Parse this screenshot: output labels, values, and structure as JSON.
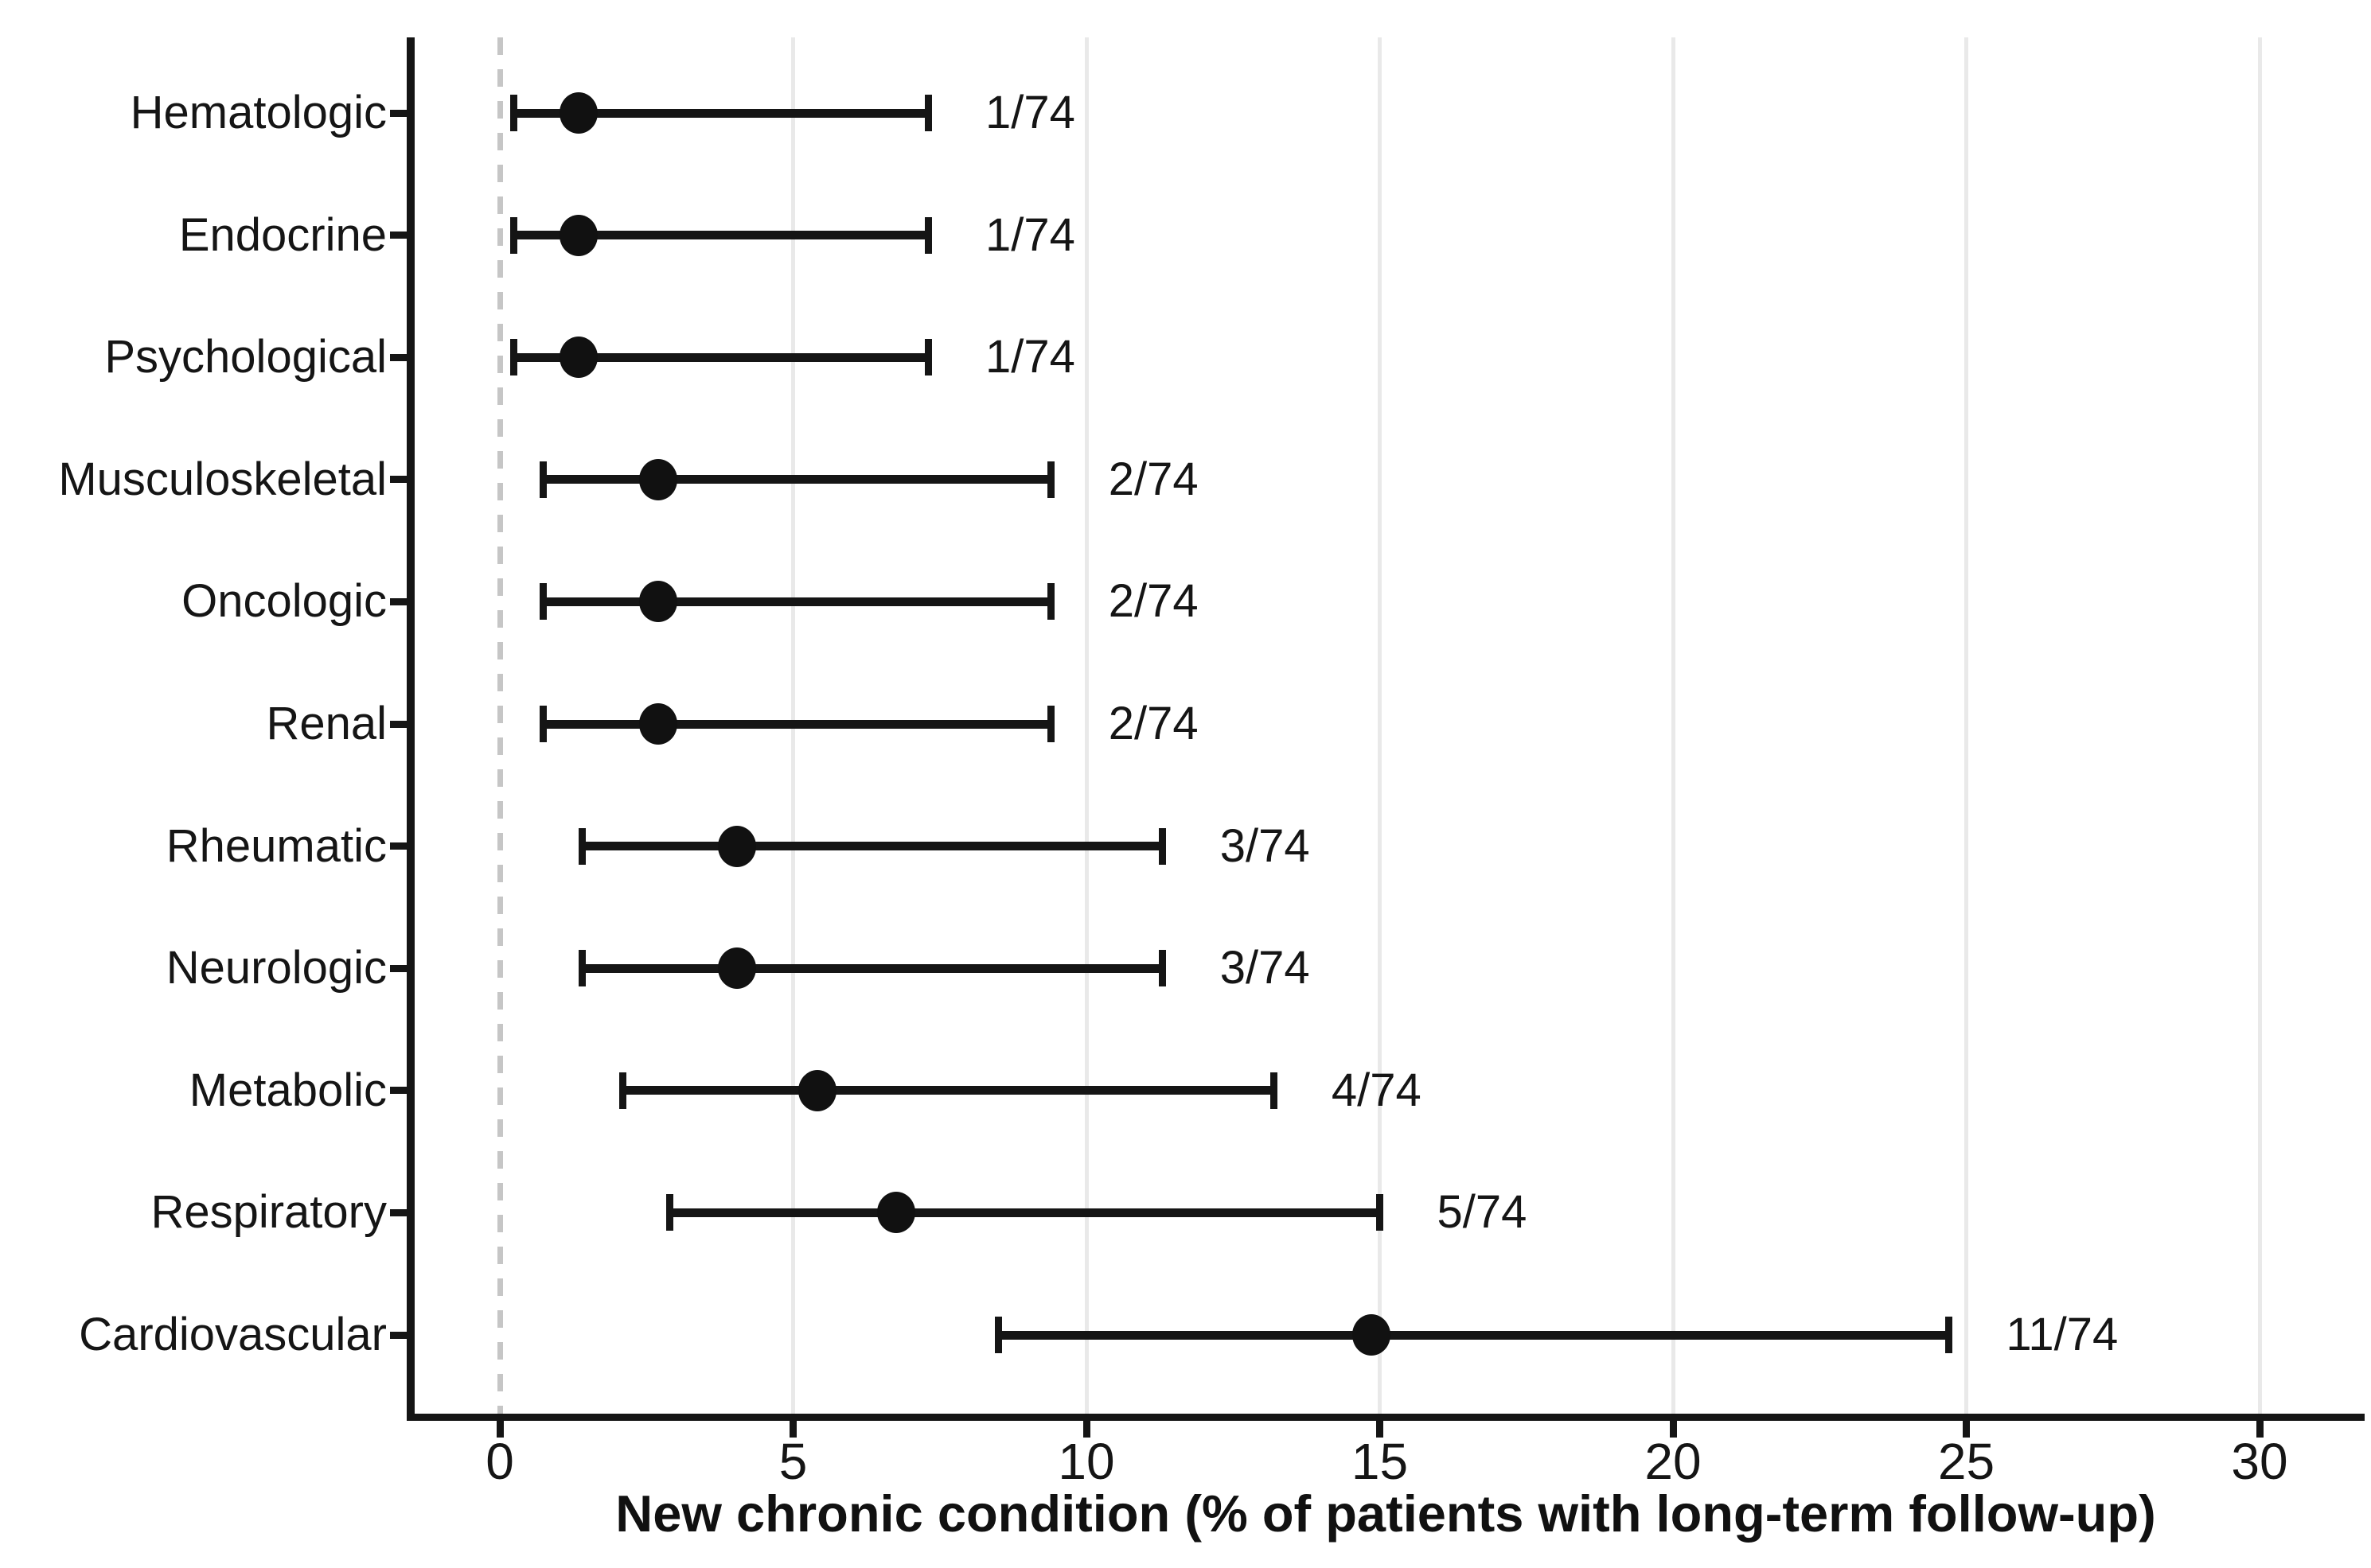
{
  "chart_data": {
    "type": "scatter",
    "subtype": "forest-plot-dots-with-ci",
    "title": "",
    "xlabel": "New chronic condition (% of patients with long-term follow-up)",
    "ylabel": "",
    "x_ticks": [
      0,
      5,
      10,
      15,
      20,
      25,
      30
    ],
    "xlim": [
      -1.5,
      31.8
    ],
    "grid": "vertical gridlines at ticks 5-30, light gray; dashed gray reference line at 0",
    "legend": "none",
    "denominator": 74,
    "rows": [
      {
        "category": "Hematologic",
        "events": 1,
        "total": 74,
        "fraction_label": "1/74",
        "estimate_pct": 1.35,
        "ci_low_pct": 0.24,
        "ci_high_pct": 7.3
      },
      {
        "category": "Endocrine",
        "events": 1,
        "total": 74,
        "fraction_label": "1/74",
        "estimate_pct": 1.35,
        "ci_low_pct": 0.24,
        "ci_high_pct": 7.3
      },
      {
        "category": "Psychological",
        "events": 1,
        "total": 74,
        "fraction_label": "1/74",
        "estimate_pct": 1.35,
        "ci_low_pct": 0.24,
        "ci_high_pct": 7.3
      },
      {
        "category": "Musculoskeletal",
        "events": 2,
        "total": 74,
        "fraction_label": "2/74",
        "estimate_pct": 2.7,
        "ci_low_pct": 0.74,
        "ci_high_pct": 9.4
      },
      {
        "category": "Oncologic",
        "events": 2,
        "total": 74,
        "fraction_label": "2/74",
        "estimate_pct": 2.7,
        "ci_low_pct": 0.74,
        "ci_high_pct": 9.4
      },
      {
        "category": "Renal",
        "events": 2,
        "total": 74,
        "fraction_label": "2/74",
        "estimate_pct": 2.7,
        "ci_low_pct": 0.74,
        "ci_high_pct": 9.4
      },
      {
        "category": "Rheumatic",
        "events": 3,
        "total": 74,
        "fraction_label": "3/74",
        "estimate_pct": 4.05,
        "ci_low_pct": 1.4,
        "ci_high_pct": 11.3
      },
      {
        "category": "Neurologic",
        "events": 3,
        "total": 74,
        "fraction_label": "3/74",
        "estimate_pct": 4.05,
        "ci_low_pct": 1.4,
        "ci_high_pct": 11.3
      },
      {
        "category": "Metabolic",
        "events": 4,
        "total": 74,
        "fraction_label": "4/74",
        "estimate_pct": 5.41,
        "ci_low_pct": 2.1,
        "ci_high_pct": 13.2
      },
      {
        "category": "Respiratory",
        "events": 5,
        "total": 74,
        "fraction_label": "5/74",
        "estimate_pct": 6.76,
        "ci_low_pct": 2.9,
        "ci_high_pct": 15.0
      },
      {
        "category": "Cardiovascular",
        "events": 11,
        "total": 74,
        "fraction_label": "11/74",
        "estimate_pct": 14.86,
        "ci_low_pct": 8.5,
        "ci_high_pct": 24.7
      }
    ]
  },
  "colors": {
    "ink": "#151515",
    "gridline": "#e9e9e9",
    "zero_line": "#c6c6c6",
    "background": "#ffffff"
  }
}
